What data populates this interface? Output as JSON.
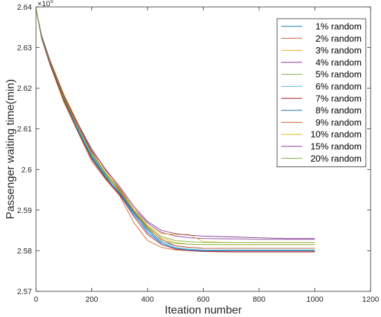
{
  "chart_data": {
    "type": "line",
    "title": "",
    "xlabel": "Iteation number",
    "ylabel": "Passenger waiting time(min)",
    "y_multiplier": "×10",
    "y_multiplier_exponent": "5",
    "xlim": [
      0,
      1200
    ],
    "ylim": [
      2.57,
      2.64
    ],
    "xticks": [
      0,
      200,
      400,
      600,
      800,
      1000,
      1200
    ],
    "xtick_labels": [
      "0",
      "200",
      "400",
      "600",
      "800",
      "1000",
      "1200"
    ],
    "yticks": [
      2.57,
      2.58,
      2.59,
      2.6,
      2.61,
      2.62,
      2.63,
      2.64
    ],
    "ytick_labels": [
      "2.57",
      "2.58",
      "2.59",
      "2.6",
      "2.61",
      "2.62",
      "2.63",
      "2.64"
    ],
    "grid": false,
    "legend_position": "top-right",
    "series": [
      {
        "name": "1% random",
        "color": "#0072BD",
        "x": [
          0,
          20,
          50,
          100,
          150,
          200,
          250,
          300,
          350,
          400,
          450,
          500,
          550,
          600,
          700,
          800,
          900,
          1000
        ],
        "y": [
          2.6395,
          2.6325,
          2.6262,
          2.6175,
          2.6102,
          2.6032,
          2.5985,
          2.5942,
          2.5895,
          2.5852,
          2.5822,
          2.5812,
          2.5808,
          2.5806,
          2.5806,
          2.5806,
          2.5806,
          2.5806
        ]
      },
      {
        "name": "2% random",
        "color": "#D95319",
        "x": [
          0,
          20,
          50,
          100,
          150,
          200,
          250,
          300,
          350,
          400,
          450,
          500,
          550,
          600,
          700,
          800,
          900,
          1000
        ],
        "y": [
          2.6395,
          2.6322,
          2.6258,
          2.6165,
          2.6092,
          2.602,
          2.5975,
          2.5935,
          2.587,
          2.5825,
          2.5808,
          2.5802,
          2.58,
          2.5799,
          2.5799,
          2.5799,
          2.5799,
          2.5799
        ]
      },
      {
        "name": "3% random",
        "color": "#EDB120",
        "x": [
          0,
          20,
          50,
          100,
          150,
          200,
          250,
          300,
          350,
          400,
          450,
          500,
          550,
          600,
          700,
          800,
          900,
          1000
        ],
        "y": [
          2.6395,
          2.633,
          2.6268,
          2.618,
          2.6105,
          2.604,
          2.5992,
          2.595,
          2.59,
          2.586,
          2.5832,
          2.582,
          2.5816,
          2.5815,
          2.5815,
          2.5815,
          2.5815,
          2.5815
        ]
      },
      {
        "name": "4% random",
        "color": "#7E2F8E",
        "x": [
          0,
          20,
          50,
          100,
          150,
          200,
          250,
          300,
          350,
          400,
          450,
          500,
          550,
          600,
          700,
          800,
          900,
          1000
        ],
        "y": [
          2.6395,
          2.6328,
          2.6264,
          2.617,
          2.6112,
          2.6045,
          2.5998,
          2.5952,
          2.5905,
          2.5868,
          2.5845,
          2.5836,
          2.5832,
          2.583,
          2.5829,
          2.5828,
          2.5828,
          2.5828
        ]
      },
      {
        "name": "5% random",
        "color": "#77AC30",
        "x": [
          0,
          20,
          50,
          100,
          150,
          200,
          250,
          300,
          350,
          400,
          450,
          500,
          550,
          600,
          700,
          800,
          900,
          1000
        ],
        "y": [
          2.6395,
          2.6326,
          2.626,
          2.6168,
          2.6098,
          2.603,
          2.5982,
          2.5945,
          2.5898,
          2.5858,
          2.5826,
          2.5818,
          2.5816,
          2.5815,
          2.5815,
          2.5815,
          2.5815,
          2.5815
        ]
      },
      {
        "name": "6% random",
        "color": "#4DBEEE",
        "x": [
          0,
          20,
          50,
          100,
          150,
          200,
          250,
          300,
          350,
          400,
          450,
          500,
          550,
          600,
          700,
          800,
          900,
          1000
        ],
        "y": [
          2.6395,
          2.6324,
          2.6262,
          2.6178,
          2.61,
          2.6035,
          2.5988,
          2.594,
          2.5888,
          2.585,
          2.5818,
          2.5808,
          2.5804,
          2.5802,
          2.5802,
          2.5802,
          2.5802,
          2.5802
        ]
      },
      {
        "name": "7% random",
        "color": "#A2142F",
        "x": [
          0,
          20,
          50,
          100,
          150,
          200,
          250,
          300,
          350,
          400,
          450,
          500,
          550,
          600,
          700,
          800,
          900,
          1000
        ],
        "y": [
          2.6395,
          2.6323,
          2.6259,
          2.6172,
          2.6095,
          2.6025,
          2.5978,
          2.5938,
          2.5885,
          2.584,
          2.5815,
          2.5804,
          2.58,
          2.5798,
          2.5797,
          2.5797,
          2.5797,
          2.5797
        ]
      },
      {
        "name": "8% random",
        "color": "#0072BD",
        "x": [
          0,
          20,
          50,
          100,
          150,
          200,
          250,
          300,
          350,
          400,
          450,
          500,
          550,
          600,
          700,
          800,
          900,
          1000
        ],
        "y": [
          2.6395,
          2.6325,
          2.6263,
          2.6176,
          2.6096,
          2.6028,
          2.598,
          2.594,
          2.5892,
          2.5845,
          2.5818,
          2.5806,
          2.5802,
          2.58,
          2.58,
          2.58,
          2.58,
          2.58
        ]
      },
      {
        "name": "9% random",
        "color": "#D95319",
        "x": [
          0,
          20,
          50,
          100,
          150,
          200,
          250,
          300,
          350,
          400,
          450,
          500,
          550,
          600,
          700,
          800,
          900,
          1000
        ],
        "y": [
          2.6395,
          2.6327,
          2.6266,
          2.618,
          2.6108,
          2.6042,
          2.599,
          2.5946,
          2.5898,
          2.5855,
          2.5828,
          2.5812,
          2.5808,
          2.5806,
          2.5806,
          2.5806,
          2.5806,
          2.5806
        ]
      },
      {
        "name": "10% random",
        "color": "#EDB120",
        "x": [
          0,
          20,
          50,
          100,
          150,
          200,
          250,
          300,
          350,
          400,
          450,
          500,
          550,
          600,
          700,
          800,
          900,
          1000
        ],
        "y": [
          2.6395,
          2.6329,
          2.627,
          2.6185,
          2.6115,
          2.6048,
          2.5996,
          2.5955,
          2.5905,
          2.5862,
          2.5842,
          2.584,
          2.584,
          2.5822,
          2.582,
          2.582,
          2.582,
          2.582
        ]
      },
      {
        "name": "15% random",
        "color": "#7E2F8E",
        "x": [
          0,
          20,
          50,
          100,
          150,
          200,
          250,
          300,
          350,
          400,
          450,
          500,
          550,
          600,
          700,
          800,
          900,
          1000
        ],
        "y": [
          2.6395,
          2.633,
          2.6268,
          2.6182,
          2.6112,
          2.605,
          2.6,
          2.5958,
          2.591,
          2.5872,
          2.585,
          2.5842,
          2.5838,
          2.5836,
          2.5834,
          2.5832,
          2.583,
          2.583
        ]
      },
      {
        "name": "20% random",
        "color": "#77AC30",
        "x": [
          0,
          20,
          50,
          100,
          150,
          200,
          250,
          300,
          350,
          400,
          450,
          500,
          550,
          600,
          700,
          800,
          900,
          1000
        ],
        "y": [
          2.6395,
          2.6326,
          2.6264,
          2.6176,
          2.6104,
          2.6038,
          2.599,
          2.5948,
          2.59,
          2.586,
          2.5835,
          2.5825,
          2.5822,
          2.582,
          2.582,
          2.582,
          2.582,
          2.582
        ]
      }
    ]
  }
}
